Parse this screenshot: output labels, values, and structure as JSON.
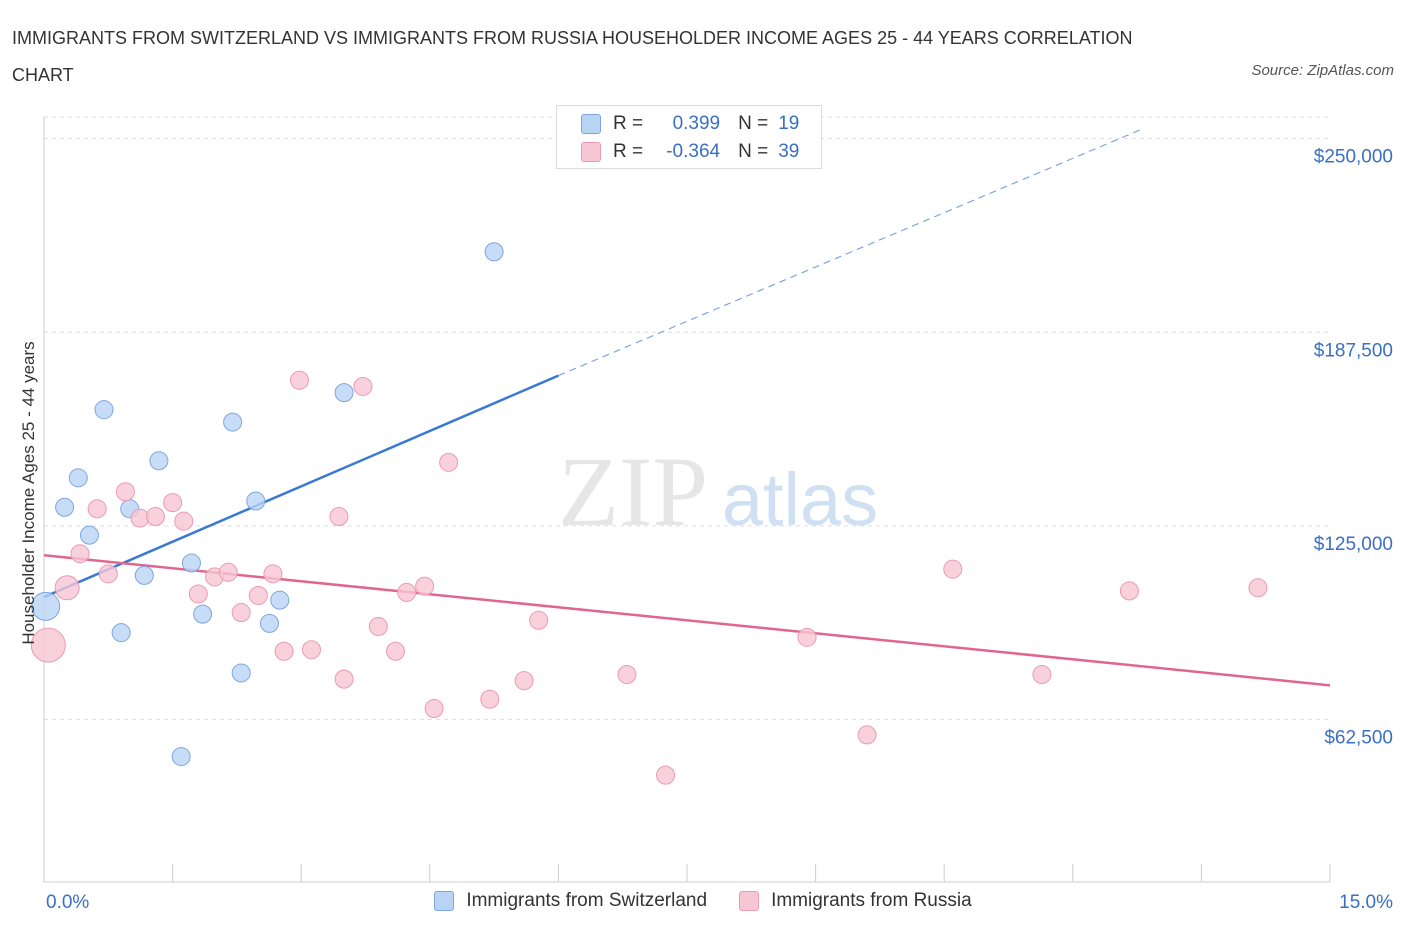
{
  "title": "IMMIGRANTS FROM SWITZERLAND VS IMMIGRANTS FROM RUSSIA HOUSEHOLDER INCOME AGES 25 - 44 YEARS CORRELATION CHART",
  "source": "Source: ZipAtlas.com",
  "watermark": {
    "zip": "ZIP",
    "atlas": "atlas"
  },
  "colors": {
    "blue": "#3a78d4",
    "blue_fill": "#b9d3f5",
    "pink": "#e0668f",
    "pink_fill": "#f7c6d5",
    "axis_text": "#3a6fc4"
  },
  "legend": {
    "r_label": "R =",
    "n_label": "N =",
    "rows": [
      {
        "r": "0.399",
        "n": "19"
      },
      {
        "r": "-0.364",
        "n": "39"
      }
    ]
  },
  "chart_data": {
    "type": "scatter",
    "title": "IMMIGRANTS FROM SWITZERLAND VS IMMIGRANTS FROM RUSSIA HOUSEHOLDER INCOME AGES 25 - 44 YEARS CORRELATION CHART",
    "xlabel": "",
    "ylabel": "Householder Income Ages 25 - 44 years",
    "xlim": [
      0,
      15
    ],
    "ylim": [
      10000,
      257000
    ],
    "x_tick_labels": [
      {
        "value": 0,
        "label": "0.0%"
      },
      {
        "value": 15,
        "label": "15.0%"
      }
    ],
    "y_ticks": [
      {
        "value": 62500,
        "label": "$62,500"
      },
      {
        "value": 125000,
        "label": "$125,000"
      },
      {
        "value": 187500,
        "label": "$187,500"
      },
      {
        "value": 250000,
        "label": "$250,000"
      }
    ],
    "grid": "horizontal dashed",
    "legend_position": "bottom-center",
    "series": [
      {
        "name": "Immigrants from Switzerland",
        "color": "#3a78d4",
        "r": 0.399,
        "n": 19,
        "trend": {
          "x_start": 0,
          "y_start": 102000,
          "x_solid_end": 6.0,
          "y_solid_end": 173500,
          "x_dash_end": 12.8,
          "y_dash_end": 253000
        },
        "points": [
          {
            "x": 0.02,
            "y": 99000,
            "size": 28
          },
          {
            "x": 0.24,
            "y": 131000,
            "size": 18
          },
          {
            "x": 0.4,
            "y": 140500,
            "size": 18
          },
          {
            "x": 0.53,
            "y": 122000,
            "size": 18
          },
          {
            "x": 0.7,
            "y": 162500,
            "size": 18
          },
          {
            "x": 0.9,
            "y": 90500,
            "size": 18
          },
          {
            "x": 1.0,
            "y": 130500,
            "size": 18
          },
          {
            "x": 1.17,
            "y": 109000,
            "size": 18
          },
          {
            "x": 1.34,
            "y": 146000,
            "size": 18
          },
          {
            "x": 1.6,
            "y": 50500,
            "size": 18
          },
          {
            "x": 1.72,
            "y": 113000,
            "size": 18
          },
          {
            "x": 1.85,
            "y": 96500,
            "size": 18
          },
          {
            "x": 2.2,
            "y": 158500,
            "size": 18
          },
          {
            "x": 2.3,
            "y": 77500,
            "size": 18
          },
          {
            "x": 2.47,
            "y": 133000,
            "size": 18
          },
          {
            "x": 2.63,
            "y": 93500,
            "size": 18
          },
          {
            "x": 2.75,
            "y": 101000,
            "size": 18
          },
          {
            "x": 3.5,
            "y": 168000,
            "size": 18
          },
          {
            "x": 5.25,
            "y": 213500,
            "size": 18
          }
        ]
      },
      {
        "name": "Immigrants from Russia",
        "color": "#e0668f",
        "r": -0.364,
        "n": 39,
        "trend": {
          "x_start": 0,
          "y_start": 115500,
          "x_end": 15,
          "y_end": 73500
        },
        "points": [
          {
            "x": 0.05,
            "y": 86500,
            "size": 34
          },
          {
            "x": 0.27,
            "y": 105000,
            "size": 24
          },
          {
            "x": 0.42,
            "y": 116000,
            "size": 18
          },
          {
            "x": 0.62,
            "y": 130500,
            "size": 18
          },
          {
            "x": 0.75,
            "y": 109500,
            "size": 18
          },
          {
            "x": 0.95,
            "y": 136000,
            "size": 18
          },
          {
            "x": 1.12,
            "y": 127500,
            "size": 18
          },
          {
            "x": 1.3,
            "y": 128000,
            "size": 18
          },
          {
            "x": 1.5,
            "y": 132500,
            "size": 18
          },
          {
            "x": 1.63,
            "y": 126500,
            "size": 18
          },
          {
            "x": 1.8,
            "y": 103000,
            "size": 18
          },
          {
            "x": 1.99,
            "y": 108500,
            "size": 18
          },
          {
            "x": 2.15,
            "y": 110000,
            "size": 18
          },
          {
            "x": 2.3,
            "y": 97000,
            "size": 18
          },
          {
            "x": 2.5,
            "y": 102500,
            "size": 18
          },
          {
            "x": 2.67,
            "y": 109500,
            "size": 18
          },
          {
            "x": 2.8,
            "y": 84500,
            "size": 18
          },
          {
            "x": 2.98,
            "y": 172000,
            "size": 18
          },
          {
            "x": 3.12,
            "y": 85000,
            "size": 18
          },
          {
            "x": 3.44,
            "y": 128000,
            "size": 18
          },
          {
            "x": 3.5,
            "y": 75500,
            "size": 18
          },
          {
            "x": 3.72,
            "y": 170000,
            "size": 18
          },
          {
            "x": 3.9,
            "y": 92500,
            "size": 18
          },
          {
            "x": 4.1,
            "y": 84500,
            "size": 18
          },
          {
            "x": 4.23,
            "y": 103500,
            "size": 18
          },
          {
            "x": 4.44,
            "y": 105500,
            "size": 18
          },
          {
            "x": 4.55,
            "y": 66000,
            "size": 18
          },
          {
            "x": 4.72,
            "y": 145500,
            "size": 18
          },
          {
            "x": 5.2,
            "y": 69000,
            "size": 18
          },
          {
            "x": 5.6,
            "y": 75000,
            "size": 18
          },
          {
            "x": 5.77,
            "y": 94500,
            "size": 18
          },
          {
            "x": 6.8,
            "y": 77000,
            "size": 18
          },
          {
            "x": 7.25,
            "y": 44500,
            "size": 18
          },
          {
            "x": 8.9,
            "y": 89000,
            "size": 18
          },
          {
            "x": 9.6,
            "y": 57500,
            "size": 18
          },
          {
            "x": 10.6,
            "y": 111000,
            "size": 18
          },
          {
            "x": 11.64,
            "y": 77000,
            "size": 18
          },
          {
            "x": 12.66,
            "y": 104000,
            "size": 18
          },
          {
            "x": 14.16,
            "y": 105000,
            "size": 18
          }
        ]
      }
    ]
  }
}
